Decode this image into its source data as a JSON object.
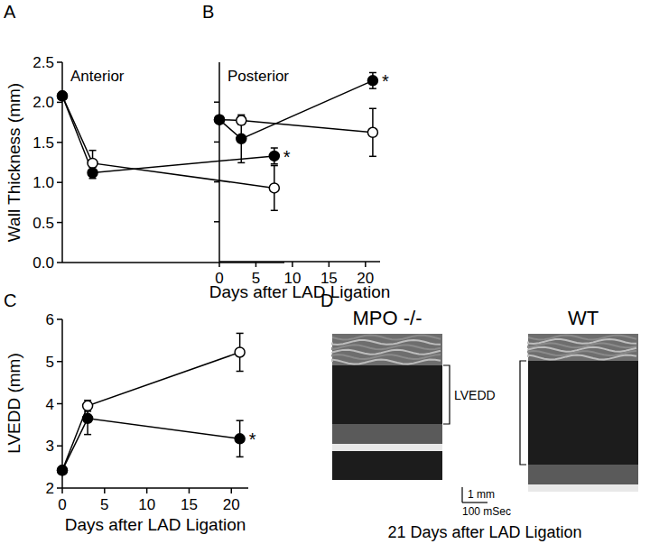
{
  "chart_data": [
    {
      "type": "line",
      "panel": "A",
      "title": "Anterior",
      "ylabel": "Wall Thickness (mm)",
      "x": [
        0,
        3,
        21
      ],
      "xlim": [
        0,
        22
      ],
      "xticks": [],
      "ylim": [
        0,
        2.5
      ],
      "yticks": [
        {
          "value": 0,
          "label": "0.0"
        },
        0.5,
        {
          "value": 1,
          "label": "1.0"
        },
        1.5,
        {
          "value": 2,
          "label": "2.0"
        },
        2.5
      ],
      "tick_labels": "y",
      "series": [
        {
          "color": "#000000",
          "marker": "circle",
          "line_style": "solid",
          "values": [
            2.08,
            1.12,
            1.33
          ],
          "errors": [
            null,
            0.07,
            0.1
          ]
        },
        {
          "color": "#000000",
          "marker": "open-circle",
          "line_style": "solid",
          "values": [
            2.08,
            1.24,
            0.93
          ],
          "errors": [
            null,
            0.16,
            0.28
          ]
        }
      ],
      "annotations": [
        {
          "text": "*",
          "x": 21
        }
      ]
    },
    {
      "type": "line",
      "panel": "B",
      "title": "Posterior",
      "xlabel": "Days after LAD Ligation",
      "x": [
        0,
        3,
        21
      ],
      "xlim": [
        0,
        22
      ],
      "xticks": [
        0,
        5,
        10,
        15,
        20
      ],
      "ylim": [
        0,
        2.5
      ],
      "yticks": [
        0.5,
        1,
        1.5,
        2
      ],
      "tick_labels": "x",
      "series": [
        {
          "color": "#000000",
          "marker": "circle",
          "line_style": "solid",
          "values": [
            1.78,
            1.54,
            2.27
          ],
          "errors": [
            null,
            0.3,
            0.1
          ]
        },
        {
          "color": "#000000",
          "marker": "open-circle",
          "line_style": "solid",
          "values": [
            1.78,
            1.77,
            1.62
          ],
          "errors": [
            null,
            0.05,
            0.3
          ]
        }
      ],
      "annotations": [
        {
          "text": "*",
          "x": 21
        }
      ]
    },
    {
      "type": "line",
      "panel": "C",
      "ylabel": "LVEDD (mm)",
      "xlabel": "Days after LAD Ligation",
      "x": [
        0,
        3,
        21
      ],
      "xlim": [
        0,
        22
      ],
      "xticks": [
        0,
        5,
        10,
        15,
        20
      ],
      "ylim": [
        2,
        6
      ],
      "yticks": [
        2,
        3,
        4,
        5,
        6
      ],
      "series": [
        {
          "color": "#000000",
          "marker": "circle",
          "line_style": "solid",
          "values": [
            2.42,
            3.65,
            3.17
          ],
          "errors": [
            null,
            0.38,
            0.43
          ]
        },
        {
          "color": "#000000",
          "marker": "open-circle",
          "line_style": "solid",
          "values": [
            2.42,
            3.95,
            5.22
          ],
          "errors": [
            null,
            0.13,
            0.45
          ]
        }
      ],
      "annotations": [
        {
          "text": "*",
          "x": 21
        }
      ]
    }
  ],
  "panel_d": {
    "panel": "D",
    "images": [
      "MPO -/-",
      "WT"
    ],
    "bracket_label": "LVEDD",
    "scale_y": "1 mm",
    "scale_x": "100 mSec",
    "caption": "21 Days after LAD Ligation"
  }
}
